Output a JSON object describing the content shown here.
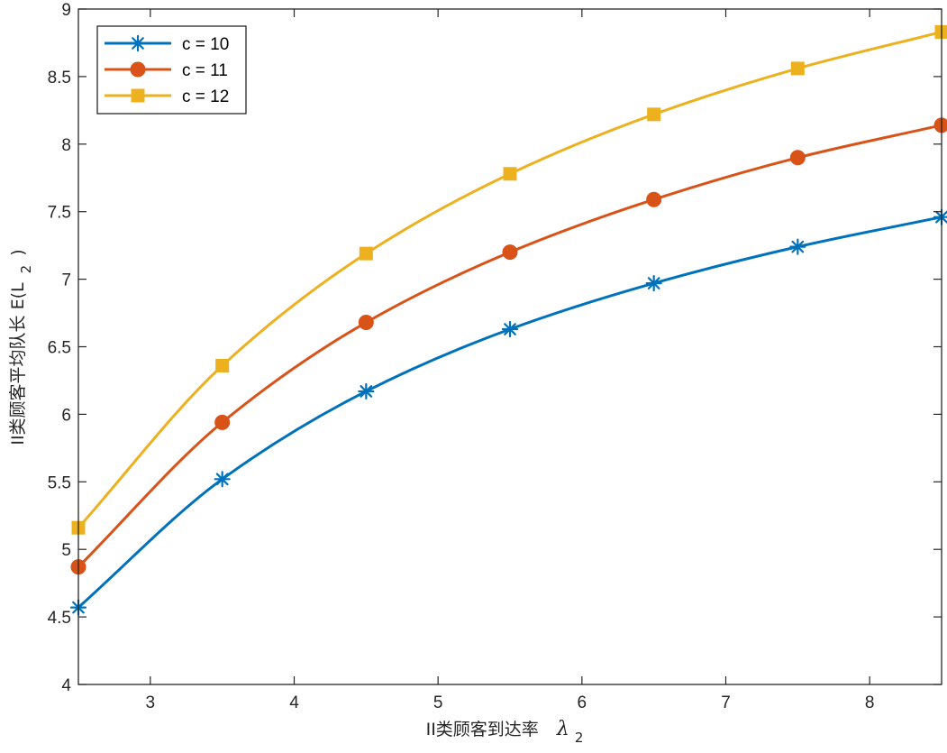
{
  "chart_data": {
    "type": "line",
    "x": [
      2.5,
      3.5,
      4.5,
      5.5,
      6.5,
      7.5,
      8.5
    ],
    "xlim": [
      2.5,
      8.5
    ],
    "ylim": [
      4,
      9
    ],
    "xticks": [
      3,
      4,
      5,
      6,
      7,
      8
    ],
    "yticks": [
      4,
      4.5,
      5,
      5.5,
      6,
      6.5,
      7,
      7.5,
      8,
      8.5,
      9
    ],
    "xlabel": "II类顾客到达率",
    "xlabel_symbol": "λ",
    "xlabel_sub": "2",
    "ylabel": "II类顾客平均队长 E(L",
    "ylabel_sub": "2",
    "ylabel_close": ")",
    "grid": false,
    "legend_position": "top-left",
    "series": [
      {
        "name": "c = 10",
        "color": "#0072BD",
        "marker": "asterisk",
        "values": [
          4.57,
          5.52,
          6.17,
          6.63,
          6.97,
          7.24,
          7.46
        ]
      },
      {
        "name": "c = 11",
        "color": "#D95319",
        "marker": "circle",
        "values": [
          4.87,
          5.94,
          6.68,
          7.2,
          7.59,
          7.9,
          8.14
        ]
      },
      {
        "name": "c = 12",
        "color": "#EDB120",
        "marker": "square",
        "values": [
          5.16,
          6.36,
          7.19,
          7.78,
          8.22,
          8.56,
          8.83
        ]
      }
    ]
  }
}
